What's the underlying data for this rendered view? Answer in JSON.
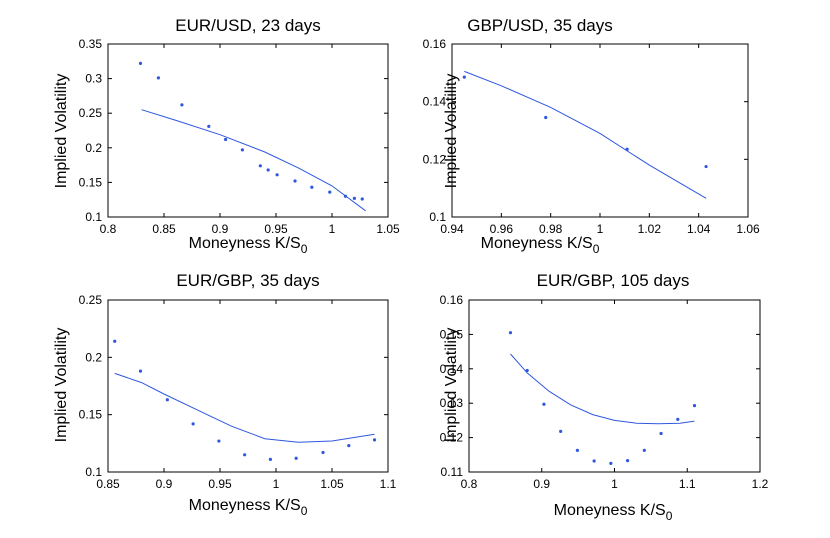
{
  "chart_data": [
    {
      "type": "scatter",
      "title": "EUR/USD, 23 days",
      "xlabel": "Moneyness K/S",
      "xlabel_sub": "0",
      "ylabel": "Implied Volatility",
      "xlim": [
        0.8,
        1.05
      ],
      "ylim": [
        0.1,
        0.35
      ],
      "xticks": [
        0.8,
        0.85,
        0.9,
        0.95,
        1,
        1.05
      ],
      "xtick_labels": [
        "0.8",
        "0.85",
        "0.9",
        "0.95",
        "1",
        "1.05"
      ],
      "yticks": [
        0.1,
        0.15,
        0.2,
        0.25,
        0.3,
        0.35
      ],
      "ytick_labels": [
        "0.1",
        "0.15",
        "0.2",
        "0.25",
        "0.3",
        "0.35"
      ],
      "grid": false,
      "points": [
        [
          0.829,
          0.322
        ],
        [
          0.845,
          0.301
        ],
        [
          0.866,
          0.262
        ],
        [
          0.89,
          0.231
        ],
        [
          0.905,
          0.212
        ],
        [
          0.92,
          0.197
        ],
        [
          0.936,
          0.174
        ],
        [
          0.943,
          0.168
        ],
        [
          0.951,
          0.161
        ],
        [
          0.967,
          0.152
        ],
        [
          0.982,
          0.143
        ],
        [
          0.998,
          0.136
        ],
        [
          1.012,
          0.13
        ],
        [
          1.02,
          0.127
        ],
        [
          1.027,
          0.126
        ]
      ],
      "fit": [
        [
          0.83,
          0.255
        ],
        [
          0.86,
          0.24
        ],
        [
          0.9,
          0.219
        ],
        [
          0.94,
          0.194
        ],
        [
          0.97,
          0.171
        ],
        [
          1.0,
          0.145
        ],
        [
          1.03,
          0.109
        ]
      ],
      "color": "#2f57e0"
    },
    {
      "type": "scatter",
      "title": "GBP/USD, 35 days",
      "xlabel": "Moneyness K/S",
      "xlabel_sub": "0",
      "ylabel": "Implied Volatility",
      "xlim": [
        0.94,
        1.06
      ],
      "ylim": [
        0.1,
        0.16
      ],
      "xticks": [
        0.94,
        0.96,
        0.98,
        1,
        1.02,
        1.04,
        1.06
      ],
      "xtick_labels": [
        "0.94",
        "0.96",
        "0.98",
        "1",
        "1.02",
        "1.04",
        "1.06"
      ],
      "yticks": [
        0.1,
        0.12,
        0.14,
        0.16
      ],
      "ytick_labels": [
        "0.1",
        "0.12",
        "0.14",
        "0.16"
      ],
      "grid": false,
      "points": [
        [
          0.945,
          0.1485
        ],
        [
          0.978,
          0.1345
        ],
        [
          1.011,
          0.1235
        ],
        [
          1.043,
          0.1175
        ]
      ],
      "fit": [
        [
          0.945,
          0.1505
        ],
        [
          0.96,
          0.1455
        ],
        [
          0.98,
          0.138
        ],
        [
          1.0,
          0.129
        ],
        [
          1.02,
          0.118
        ],
        [
          1.043,
          0.1065
        ]
      ],
      "color": "#2f57e0"
    },
    {
      "type": "scatter",
      "title": "EUR/GBP, 35 days",
      "xlabel": "Moneyness K/S",
      "xlabel_sub": "0",
      "ylabel": "Implied Volatility",
      "xlim": [
        0.85,
        1.1
      ],
      "ylim": [
        0.1,
        0.25
      ],
      "xticks": [
        0.85,
        0.9,
        0.95,
        1,
        1.05,
        1.1
      ],
      "xtick_labels": [
        "0.85",
        "0.9",
        "0.95",
        "1",
        "1.05",
        "1.1"
      ],
      "yticks": [
        0.1,
        0.15,
        0.2,
        0.25
      ],
      "ytick_labels": [
        "0.1",
        "0.15",
        "0.2",
        "0.25"
      ],
      "grid": false,
      "points": [
        [
          0.856,
          0.214
        ],
        [
          0.879,
          0.188
        ],
        [
          0.903,
          0.163
        ],
        [
          0.926,
          0.142
        ],
        [
          0.949,
          0.127
        ],
        [
          0.972,
          0.115
        ],
        [
          0.995,
          0.111
        ],
        [
          1.018,
          0.112
        ],
        [
          1.042,
          0.117
        ],
        [
          1.065,
          0.123
        ],
        [
          1.088,
          0.128
        ]
      ],
      "fit": [
        [
          0.856,
          0.186
        ],
        [
          0.88,
          0.178
        ],
        [
          0.9,
          0.168
        ],
        [
          0.93,
          0.154
        ],
        [
          0.96,
          0.14
        ],
        [
          0.99,
          0.129
        ],
        [
          1.02,
          0.126
        ],
        [
          1.05,
          0.127
        ],
        [
          1.088,
          0.133
        ]
      ],
      "color": "#2f57e0"
    },
    {
      "type": "scatter",
      "title": "EUR/GBP, 105 days",
      "xlabel": "Moneyness K/S",
      "xlabel_sub": "0",
      "ylabel": "Implied Volatility",
      "xlim": [
        0.8,
        1.2
      ],
      "ylim": [
        0.11,
        0.16
      ],
      "xticks": [
        0.8,
        0.9,
        1,
        1.1,
        1.2
      ],
      "xtick_labels": [
        "0.8",
        "0.9",
        "1",
        "1.1",
        "1.2"
      ],
      "yticks": [
        0.11,
        0.12,
        0.13,
        0.14,
        0.15,
        0.16
      ],
      "ytick_labels": [
        "0.11",
        "0.12",
        "0.13",
        "0.14",
        "0.15",
        "0.16"
      ],
      "grid": false,
      "points": [
        [
          0.857,
          0.1505
        ],
        [
          0.88,
          0.1395
        ],
        [
          0.903,
          0.1297
        ],
        [
          0.926,
          0.1218
        ],
        [
          0.949,
          0.1163
        ],
        [
          0.972,
          0.1132
        ],
        [
          0.995,
          0.1125
        ],
        [
          1.018,
          0.1133
        ],
        [
          1.041,
          0.1163
        ],
        [
          1.064,
          0.1212
        ],
        [
          1.087,
          0.1253
        ],
        [
          1.11,
          0.1293
        ]
      ],
      "fit": [
        [
          0.857,
          0.1443
        ],
        [
          0.88,
          0.1388
        ],
        [
          0.91,
          0.1335
        ],
        [
          0.94,
          0.1295
        ],
        [
          0.97,
          0.1267
        ],
        [
          1.0,
          0.125
        ],
        [
          1.03,
          0.1242
        ],
        [
          1.06,
          0.124
        ],
        [
          1.09,
          0.1242
        ],
        [
          1.11,
          0.1248
        ]
      ],
      "color": "#2f57e0"
    }
  ]
}
